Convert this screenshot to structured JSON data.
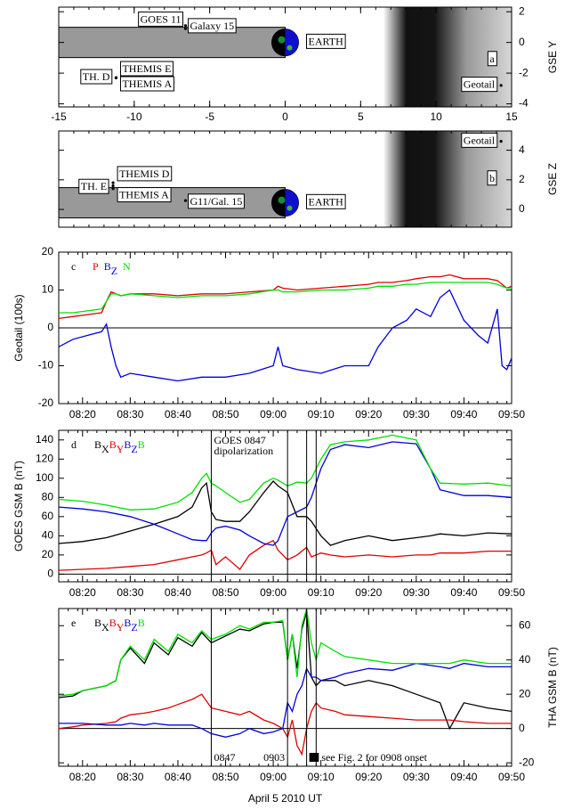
{
  "chart_data": [
    {
      "type": "scatter",
      "panel": "a",
      "ylabel": "GSE Y",
      "yaxis": "right",
      "xlim": [
        -15,
        15
      ],
      "xticks": [
        -15,
        -10,
        -5,
        0,
        5,
        10,
        15
      ],
      "ylim": [
        -4.2,
        2.3
      ],
      "yticks": [
        2,
        0,
        -2,
        -4
      ],
      "earth_label": "EARTH",
      "points": [
        {
          "name": "GOES 11",
          "x": -6.6,
          "y": 1.1
        },
        {
          "name": "Galaxy 15",
          "x": -6.6,
          "y": 0.9
        },
        {
          "name": "TH. D",
          "x": -11.2,
          "y": -2.3
        },
        {
          "name": "THEMIS E",
          "x": -11.2,
          "y": -2.3
        },
        {
          "name": "THEMIS A",
          "x": -11.2,
          "y": -2.3
        },
        {
          "name": "Geotail",
          "x": 14.3,
          "y": -2.8
        }
      ]
    },
    {
      "type": "scatter",
      "panel": "b",
      "ylabel": "GSE Z",
      "yaxis": "right",
      "xlim": [
        -15,
        15
      ],
      "ylim": [
        -1.2,
        5.3
      ],
      "yticks": [
        4,
        2,
        0
      ],
      "earth_label": "EARTH",
      "points": [
        {
          "name": "Geotail",
          "x": 14.3,
          "y": 4.6
        },
        {
          "name": "TH. E",
          "x": -11.4,
          "y": 1.6
        },
        {
          "name": "THEMIS D",
          "x": -11.4,
          "y": 1.8
        },
        {
          "name": "THEMIS A",
          "x": -11.4,
          "y": 1.4
        },
        {
          "name": "G11/Gal. 15",
          "x": -6.6,
          "y": 0.6
        }
      ]
    },
    {
      "type": "line",
      "panel": "c",
      "ylabel": "Geotail (100s)",
      "yaxis": "left",
      "xlim": [
        "08:15",
        "09:50"
      ],
      "xticks": [
        "08:20",
        "08:30",
        "08:40",
        "08:50",
        "09:00",
        "09:10",
        "09:20",
        "09:30",
        "09:40",
        "09:50"
      ],
      "ylim": [
        -20,
        20
      ],
      "yticks": [
        -20,
        -10,
        0,
        10,
        20
      ],
      "zero_line": true,
      "x": [
        "08:15",
        "08:18",
        "08:21",
        "08:24",
        "08:25",
        "08:26",
        "08:27",
        "08:28",
        "08:30",
        "08:35",
        "08:40",
        "08:45",
        "08:50",
        "08:55",
        "09:00",
        "09:01",
        "09:02",
        "09:05",
        "09:10",
        "09:15",
        "09:20",
        "09:22",
        "09:25",
        "09:28",
        "09:30",
        "09:33",
        "09:35",
        "09:37",
        "09:40",
        "09:43",
        "09:45",
        "09:47",
        "09:48",
        "09:49",
        "09:50"
      ],
      "series": [
        {
          "name": "P",
          "color": "#e00000",
          "values": [
            2.5,
            3,
            3.5,
            4,
            7,
            9.5,
            9,
            8.5,
            9,
            9,
            8.5,
            9,
            9,
            9.5,
            10,
            11,
            10.5,
            10,
            10.5,
            11,
            11.5,
            12,
            12,
            12.5,
            13,
            13.5,
            13.5,
            14,
            13,
            13,
            13,
            12.5,
            11.5,
            10.5,
            11
          ]
        },
        {
          "name": "BZ",
          "color": "#0000dd",
          "values": [
            -5,
            -3,
            -2,
            -1,
            1,
            -5,
            -10,
            -13,
            -12,
            -13,
            -14,
            -13,
            -13,
            -12,
            -10,
            -5,
            -10,
            -11,
            -12,
            -10,
            -10,
            -5,
            0,
            2,
            5,
            3,
            8,
            10,
            2,
            -2,
            -4,
            5,
            -10,
            -11,
            -8
          ]
        },
        {
          "name": "N",
          "color": "#00e000",
          "values": [
            4,
            4,
            4.5,
            5,
            7,
            9,
            9,
            8.5,
            9,
            8.5,
            8,
            8.5,
            8.5,
            9,
            10,
            10,
            9.5,
            9.5,
            10,
            10,
            10.5,
            11,
            11,
            11.5,
            11.5,
            12,
            12,
            12,
            12,
            12,
            12,
            11.5,
            11,
            10.5,
            10.5
          ]
        }
      ]
    },
    {
      "type": "line",
      "panel": "d",
      "ylabel": "GOES GSM B (nT)",
      "yaxis": "left",
      "xlim": [
        "08:15",
        "09:50"
      ],
      "xticks": [
        "08:20",
        "08:30",
        "08:40",
        "08:50",
        "09:00",
        "09:10",
        "09:20",
        "09:30",
        "09:40",
        "09:50"
      ],
      "ylim": [
        -8,
        150
      ],
      "yticks": [
        0,
        20,
        40,
        60,
        80,
        100,
        120,
        140
      ],
      "zero_line": true,
      "vlines": [
        "08:47",
        "09:03",
        "09:07",
        "09:09"
      ],
      "annotations": [
        "GOES 0847",
        "dipolarization"
      ],
      "x": [
        "08:15",
        "08:20",
        "08:25",
        "08:30",
        "08:35",
        "08:40",
        "08:43",
        "08:45",
        "08:46",
        "08:47",
        "08:48",
        "08:50",
        "08:53",
        "08:55",
        "08:58",
        "09:00",
        "09:01",
        "09:03",
        "09:05",
        "09:07",
        "09:08",
        "09:10",
        "09:12",
        "09:15",
        "09:20",
        "09:25",
        "09:30",
        "09:33",
        "09:35",
        "09:40",
        "09:45",
        "09:50"
      ],
      "series": [
        {
          "name": "BX",
          "color": "#000000",
          "values": [
            32,
            34,
            38,
            45,
            52,
            60,
            70,
            90,
            95,
            65,
            57,
            55,
            55,
            65,
            85,
            97,
            92,
            85,
            60,
            60,
            55,
            40,
            30,
            35,
            40,
            35,
            38,
            40,
            42,
            40,
            43,
            42
          ]
        },
        {
          "name": "BY",
          "color": "#e00000",
          "values": [
            4,
            5,
            6,
            8,
            10,
            15,
            18,
            20,
            22,
            25,
            10,
            18,
            5,
            20,
            30,
            35,
            25,
            15,
            20,
            28,
            18,
            22,
            20,
            18,
            20,
            18,
            20,
            20,
            22,
            22,
            24,
            24
          ]
        },
        {
          "name": "BZ",
          "color": "#0000dd",
          "values": [
            70,
            68,
            65,
            60,
            52,
            42,
            36,
            35,
            35,
            43,
            48,
            50,
            46,
            40,
            32,
            30,
            35,
            60,
            65,
            70,
            80,
            110,
            130,
            135,
            132,
            138,
            136,
            110,
            88,
            82,
            82,
            80
          ]
        },
        {
          "name": "B",
          "color": "#00e000",
          "values": [
            78,
            76,
            72,
            67,
            68,
            75,
            85,
            100,
            105,
            95,
            92,
            85,
            75,
            78,
            95,
            100,
            98,
            92,
            96,
            95,
            100,
            120,
            135,
            138,
            140,
            145,
            140,
            110,
            95,
            94,
            95,
            92
          ]
        }
      ]
    },
    {
      "type": "line",
      "panel": "e",
      "ylabel": "THA GSM B (nT)",
      "yaxis": "right",
      "xlabel": "April 5 2010 UT",
      "xlim": [
        "08:15",
        "09:50"
      ],
      "xticks": [
        "08:20",
        "08:30",
        "08:40",
        "08:50",
        "09:00",
        "09:10",
        "09:20",
        "09:30",
        "09:40",
        "09:50"
      ],
      "ylim": [
        -22,
        70
      ],
      "yticks": [
        -20,
        0,
        20,
        40,
        60
      ],
      "zero_line": true,
      "vlines": [
        "08:47",
        "09:03",
        "09:07",
        "09:09"
      ],
      "annotations": [
        "0847",
        "0903",
        "see Fig. 2 for 0908 onset"
      ],
      "x": [
        "08:15",
        "08:18",
        "08:20",
        "08:25",
        "08:27",
        "08:28",
        "08:30",
        "08:33",
        "08:35",
        "08:38",
        "08:40",
        "08:43",
        "08:45",
        "08:47",
        "08:50",
        "08:53",
        "08:55",
        "08:58",
        "09:00",
        "09:02",
        "09:03",
        "09:04",
        "09:05",
        "09:06",
        "09:07",
        "09:08",
        "09:09",
        "09:10",
        "09:13",
        "09:15",
        "09:20",
        "09:25",
        "09:30",
        "09:35",
        "09:37",
        "09:40",
        "09:45",
        "09:50"
      ],
      "series": [
        {
          "name": "BX",
          "color": "#000000",
          "values": [
            18,
            19,
            22,
            25,
            28,
            40,
            47,
            38,
            50,
            43,
            53,
            48,
            56,
            50,
            54,
            58,
            57,
            61,
            62,
            62,
            40,
            55,
            35,
            58,
            68,
            30,
            25,
            28,
            28,
            25,
            28,
            25,
            20,
            15,
            0,
            15,
            12,
            10
          ]
        },
        {
          "name": "BY",
          "color": "#e00000",
          "values": [
            0,
            1,
            2,
            3,
            4,
            6,
            8,
            9,
            10,
            12,
            14,
            17,
            20,
            12,
            10,
            8,
            10,
            5,
            3,
            0,
            -5,
            5,
            -10,
            -15,
            0,
            10,
            15,
            12,
            10,
            8,
            7,
            6,
            5,
            5,
            5,
            4,
            3,
            3
          ]
        },
        {
          "name": "BZ",
          "color": "#0000dd",
          "values": [
            3,
            3,
            3,
            2,
            2,
            2,
            3,
            2,
            3,
            2,
            2,
            2,
            0,
            -3,
            -5,
            -3,
            0,
            -3,
            -2,
            0,
            15,
            10,
            20,
            25,
            35,
            30,
            30,
            28,
            30,
            32,
            35,
            34,
            38,
            36,
            35,
            38,
            36,
            36
          ]
        },
        {
          "name": "B",
          "color": "#00e000",
          "values": [
            19,
            20,
            22,
            25,
            28,
            40,
            48,
            40,
            52,
            45,
            55,
            50,
            57,
            52,
            55,
            60,
            58,
            62,
            62,
            63,
            40,
            55,
            30,
            60,
            70,
            50,
            40,
            50,
            45,
            42,
            40,
            38,
            38,
            38,
            38,
            40,
            38,
            38
          ]
        }
      ]
    }
  ]
}
